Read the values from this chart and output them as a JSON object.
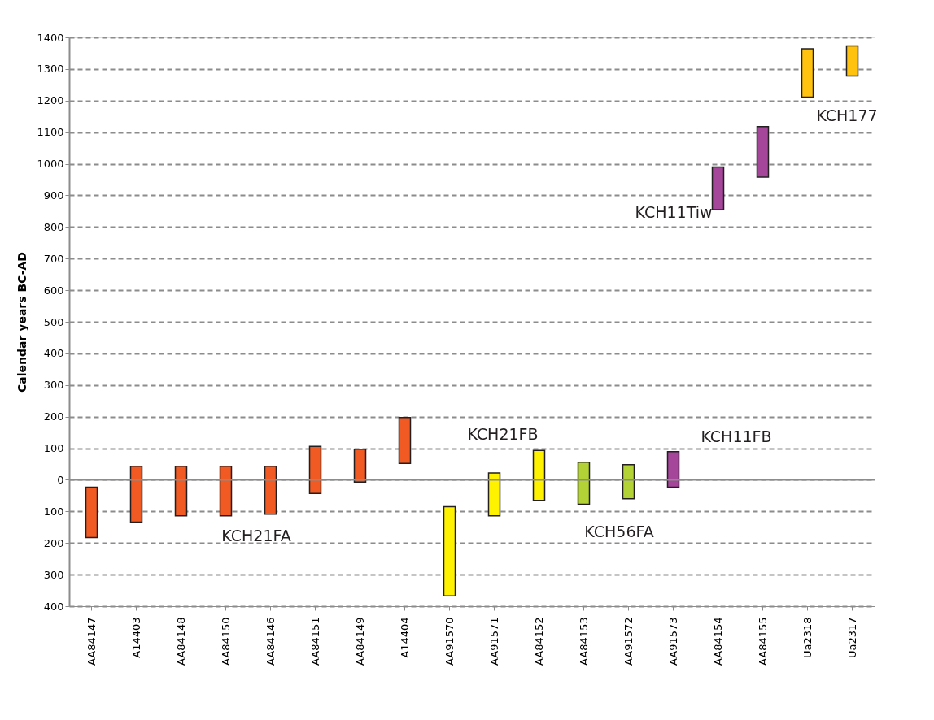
{
  "chart_data": {
    "type": "bar",
    "ylabel": "Calendar years BC-AD",
    "categories": [
      "AA84147",
      "A14403",
      "AA84148",
      "AA84150",
      "AA84146",
      "AA84151",
      "AA84149",
      "A14404",
      "AA91570",
      "AA91571",
      "AA84152",
      "AA84153",
      "AA91572",
      "AA91573",
      "AA84154",
      "AA84155",
      "Ua2318",
      "Ua2317"
    ],
    "base": [
      -183,
      -134,
      -114,
      -114,
      -109,
      -43,
      -7,
      52,
      -367,
      -114,
      -65,
      -77,
      -60,
      -23,
      855,
      958,
      1211,
      1278
    ],
    "values": [
      160,
      177,
      157,
      157,
      152,
      149,
      104,
      145,
      282,
      136,
      158,
      133,
      108,
      112,
      135,
      160,
      153,
      95
    ],
    "colors": [
      "#f15a22",
      "#f15a22",
      "#f15a22",
      "#f15a22",
      "#f15a22",
      "#f15a22",
      "#f15a22",
      "#f15a22",
      "#fff200",
      "#fff200",
      "#fff200",
      "#b2d235",
      "#b2d235",
      "#a5469a",
      "#a5469a",
      "#a5469a",
      "#ffc20e",
      "#ffc20e"
    ],
    "ylim": [
      -400,
      1400
    ],
    "yticks": [
      {
        "value": -400,
        "label": "400"
      },
      {
        "value": -300,
        "label": "300"
      },
      {
        "value": -200,
        "label": "200"
      },
      {
        "value": -100,
        "label": "100"
      },
      0,
      100,
      200,
      300,
      400,
      500,
      600,
      700,
      800,
      900,
      1000,
      1100,
      1200,
      1300,
      1400
    ],
    "grid": "y",
    "ref_lines": [
      {
        "axis": "y",
        "value": 0,
        "color": "#8c8c8c",
        "line_style": "solid"
      }
    ],
    "annotations": [
      "KCH21FA",
      "KCH21FB",
      "KCH56FA",
      "KCH11FB",
      "KCH11Tiw",
      "KCH177"
    ]
  }
}
